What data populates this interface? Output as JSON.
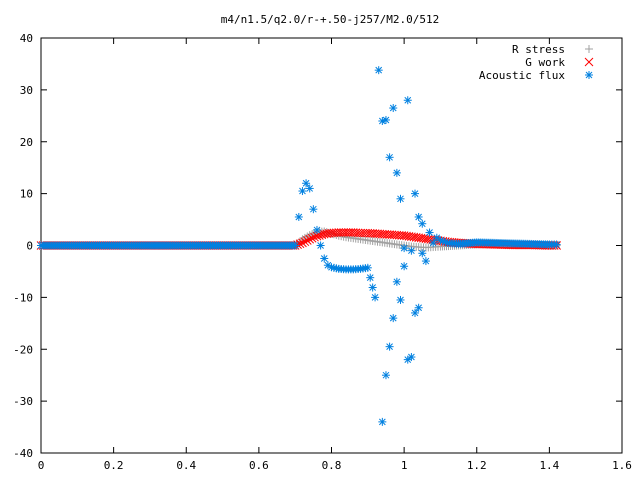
{
  "chart_data": {
    "type": "scatter",
    "title": "m4/n1.5/q2.0/r-+.50-j257/M2.0/512",
    "xlabel": "",
    "ylabel": "",
    "xlim": [
      0,
      1.6
    ],
    "ylim": [
      -40,
      40
    ],
    "x_ticks": [
      "0",
      "0.2",
      "0.4",
      "0.6",
      "0.8",
      "1",
      "1.2",
      "1.4",
      "1.6"
    ],
    "y_ticks": [
      "-40",
      "-30",
      "-20",
      "-10",
      "0",
      "10",
      "20",
      "30",
      "40"
    ],
    "grid": false,
    "legend_position": "top-right",
    "series": [
      {
        "name": "R stress",
        "marker": "plus",
        "color": "#a0a0a0",
        "x": [
          0.0,
          0.05,
          0.1,
          0.15,
          0.2,
          0.25,
          0.3,
          0.35,
          0.4,
          0.45,
          0.5,
          0.55,
          0.6,
          0.65,
          0.7,
          0.72,
          0.74,
          0.76,
          0.78,
          0.8,
          0.82,
          0.84,
          0.86,
          0.88,
          0.9,
          0.92,
          0.94,
          0.96,
          0.98,
          1.0,
          1.02,
          1.04,
          1.06,
          1.08,
          1.1,
          1.15,
          1.2,
          1.25,
          1.3,
          1.35,
          1.4,
          1.42
        ],
        "y": [
          0,
          0,
          0,
          0,
          0,
          0,
          0,
          0,
          0,
          0,
          0,
          0,
          0,
          0,
          0,
          1.2,
          2.0,
          2.6,
          2.7,
          2.3,
          1.9,
          1.6,
          1.4,
          1.2,
          1.0,
          0.8,
          0.6,
          0.4,
          0.2,
          0.0,
          -0.2,
          -0.3,
          -0.4,
          -0.3,
          -0.2,
          0,
          0.2,
          0.3,
          0.2,
          0.1,
          0.0,
          0.0
        ]
      },
      {
        "name": "G work",
        "marker": "cross",
        "color": "#ff0000",
        "x": [
          0.0,
          0.05,
          0.1,
          0.15,
          0.2,
          0.25,
          0.3,
          0.35,
          0.4,
          0.45,
          0.5,
          0.55,
          0.6,
          0.65,
          0.7,
          0.72,
          0.74,
          0.76,
          0.78,
          0.8,
          0.82,
          0.84,
          0.86,
          0.88,
          0.9,
          0.92,
          0.94,
          0.96,
          0.98,
          1.0,
          1.02,
          1.04,
          1.06,
          1.08,
          1.1,
          1.12,
          1.15,
          1.2,
          1.25,
          1.3,
          1.35,
          1.4,
          1.42
        ],
        "y": [
          0,
          0,
          0,
          0,
          0,
          0,
          0,
          0,
          0,
          0,
          0,
          0,
          0,
          0,
          0,
          0.5,
          1.2,
          1.8,
          2.2,
          2.4,
          2.5,
          2.5,
          2.5,
          2.4,
          2.4,
          2.3,
          2.2,
          2.1,
          2.0,
          1.9,
          1.7,
          1.5,
          1.3,
          1.1,
          0.9,
          0.7,
          0.5,
          0.3,
          0.2,
          0.1,
          0.1,
          0.0,
          0.0
        ]
      },
      {
        "name": "Acoustic flux",
        "marker": "star",
        "color": "#0080e0",
        "x": [
          0.0,
          0.05,
          0.1,
          0.15,
          0.2,
          0.25,
          0.3,
          0.35,
          0.4,
          0.45,
          0.5,
          0.55,
          0.6,
          0.65,
          0.7,
          0.71,
          0.72,
          0.73,
          0.74,
          0.75,
          0.76,
          0.77,
          0.78,
          0.79,
          0.8,
          0.82,
          0.84,
          0.86,
          0.88,
          0.9,
          0.92,
          0.93,
          0.94,
          0.94,
          0.95,
          0.95,
          0.96,
          0.96,
          0.97,
          0.97,
          0.98,
          0.98,
          0.99,
          0.99,
          1.0,
          1.0,
          1.01,
          1.01,
          1.02,
          1.02,
          1.03,
          1.03,
          1.04,
          1.04,
          1.05,
          1.05,
          1.06,
          1.07,
          1.08,
          1.09,
          1.1,
          1.12,
          1.15,
          1.2,
          1.25,
          1.3,
          1.35,
          1.4,
          1.42
        ],
        "y": [
          0,
          0,
          0,
          0,
          0,
          0,
          0,
          0,
          0,
          0,
          0,
          0,
          0,
          0,
          0,
          5.5,
          10.5,
          12.0,
          11.0,
          7.0,
          3.0,
          0.0,
          -2.5,
          -3.8,
          -4.2,
          -4.5,
          -4.6,
          -4.6,
          -4.5,
          -4.3,
          -10.0,
          33.8,
          -34.0,
          24.0,
          -25.0,
          24.2,
          17.0,
          -19.5,
          26.5,
          -14.0,
          -7.0,
          14.0,
          -10.5,
          9.0,
          -4.0,
          -0.5,
          28.0,
          -22.0,
          -21.5,
          -1.0,
          -13.0,
          10.0,
          -12.0,
          5.5,
          4.2,
          -1.5,
          -3.0,
          2.5,
          0.5,
          1.5,
          1.0,
          0.5,
          0.3,
          0.6,
          0.5,
          0.4,
          0.3,
          0.2,
          0.2
        ]
      }
    ]
  }
}
